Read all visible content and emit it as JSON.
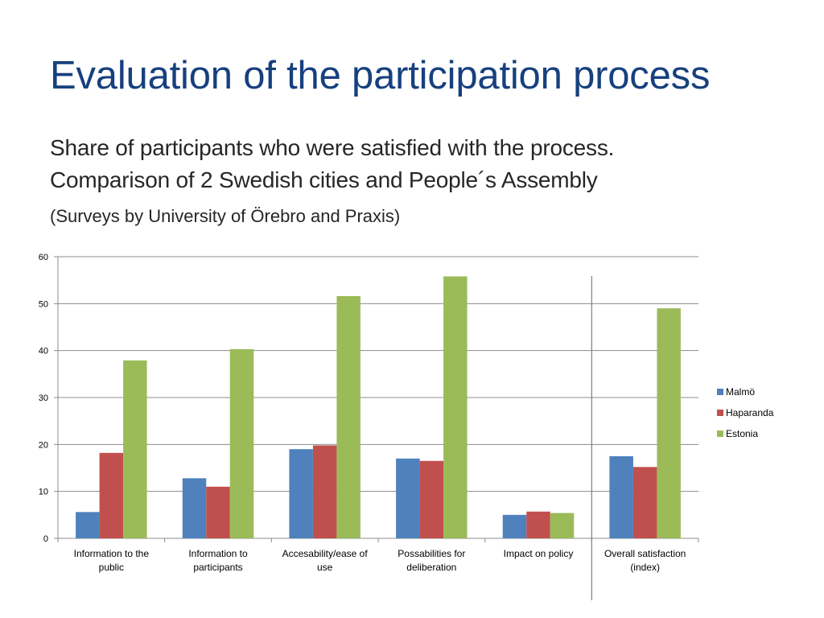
{
  "slide": {
    "title": "Evaluation of the participation process",
    "subtitle_line1": "Share of participants  who were satisfied with the process.",
    "subtitle_line2": "Comparison of  2 Swedish cities and People´s Assembly",
    "note": "(Surveys by University of Örebro and Praxis)"
  },
  "chart_data": {
    "type": "bar",
    "categories": [
      [
        "Information to the",
        "public"
      ],
      [
        "Information to",
        "participants"
      ],
      [
        "Accesability/ease of",
        "use"
      ],
      [
        "Possabilities for",
        "deliberation"
      ],
      [
        "Impact on policy"
      ],
      [
        "Overall satisfaction",
        "(index)"
      ]
    ],
    "series": [
      {
        "name": "Malmö",
        "color": "#4f81bd",
        "values": [
          5.6,
          12.8,
          19.0,
          17.0,
          5.0,
          17.5
        ]
      },
      {
        "name": "Haparanda",
        "color": "#c0504d",
        "values": [
          18.2,
          11.0,
          19.8,
          16.5,
          5.7,
          15.2
        ]
      },
      {
        "name": "Estonia",
        "color": "#9bbb59",
        "values": [
          37.9,
          40.3,
          51.6,
          55.8,
          5.4,
          49.0
        ]
      }
    ],
    "ylim": [
      0,
      60
    ],
    "yticks": [
      0,
      10,
      20,
      30,
      40,
      50,
      60
    ],
    "grid": true,
    "legend": "right"
  }
}
